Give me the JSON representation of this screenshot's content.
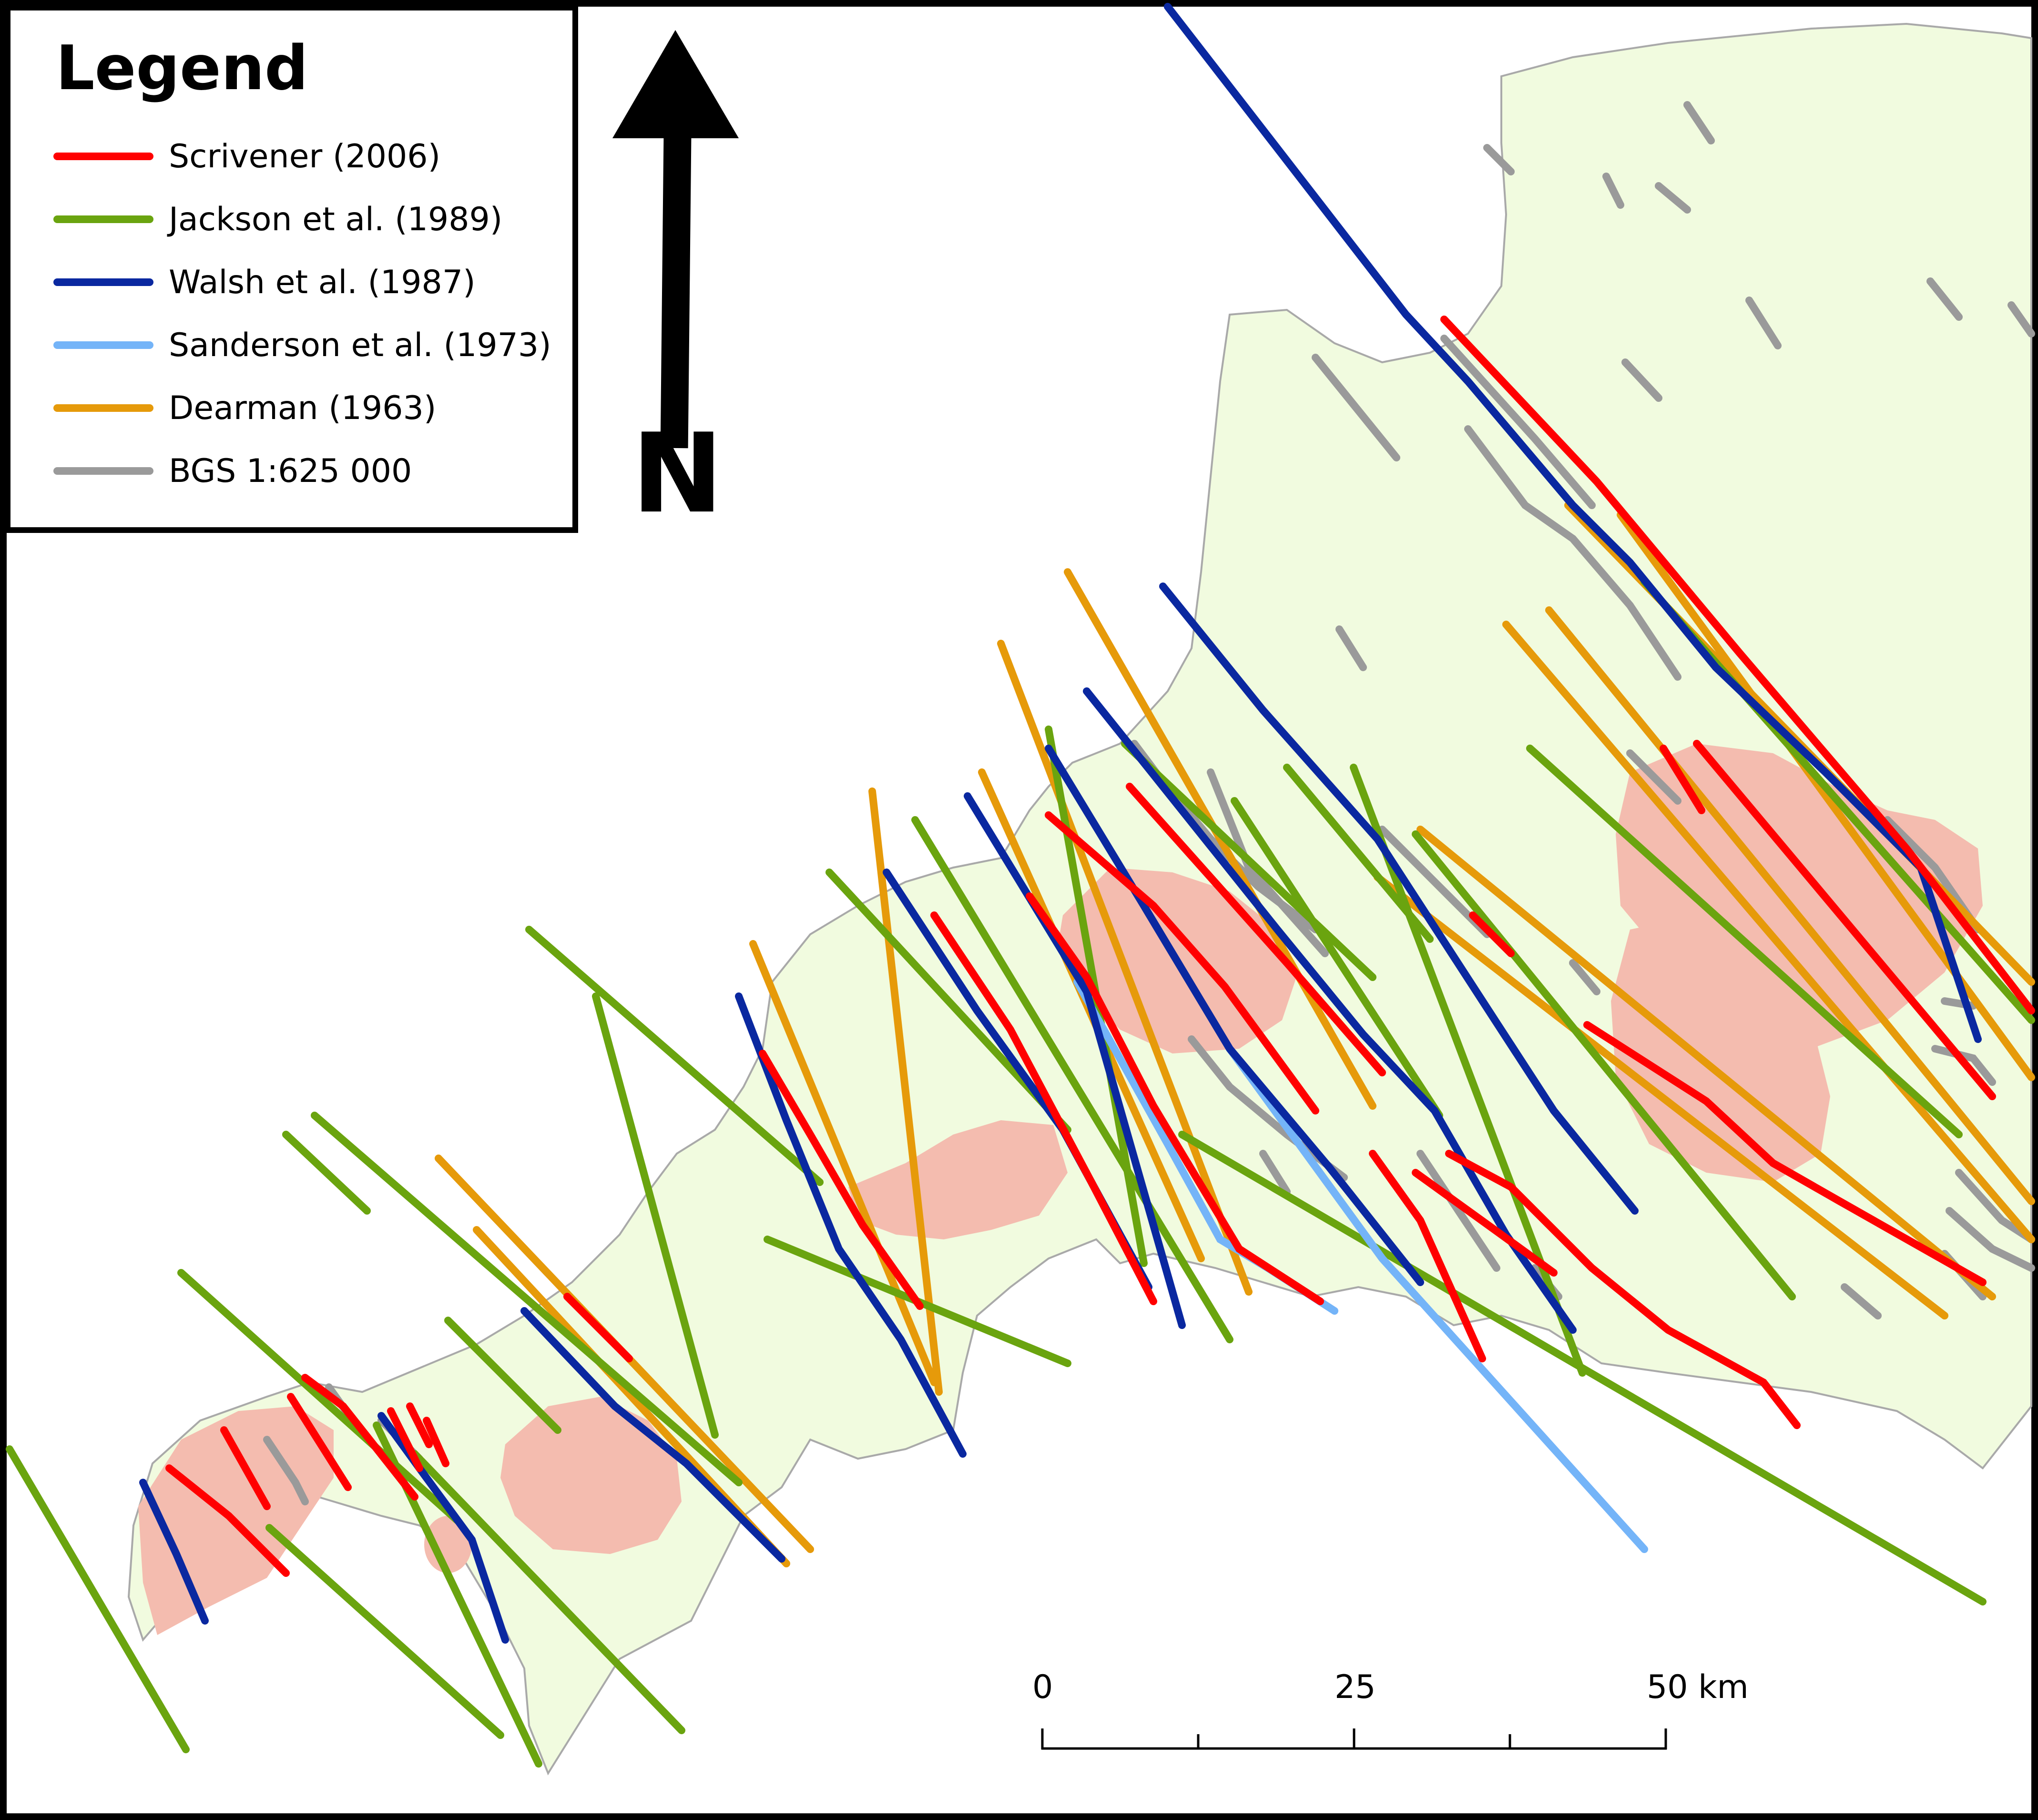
{
  "legend": {
    "title": "Legend",
    "items": [
      {
        "label": "Scrivener (2006)",
        "color": "#ff0000"
      },
      {
        "label": "Jackson et al. (1989)",
        "color": "#6aa40f"
      },
      {
        "label": "Walsh et al. (1987)",
        "color": "#0a28a0"
      },
      {
        "label": "Sanderson et al. (1973)",
        "color": "#74b4f8"
      },
      {
        "label": "Dearman (1963)",
        "color": "#e69a0a"
      },
      {
        "label": "BGS 1:625 000",
        "color": "#9a9a9a"
      }
    ]
  },
  "north_arrow": {
    "label": "N"
  },
  "scale_bar": {
    "ticks": [
      "0",
      "25",
      "50 km"
    ]
  },
  "colors": {
    "land": "#f1fbdf",
    "granite": "#f4bcaf",
    "coastline": "#a9a9a9",
    "frame": "#000000"
  }
}
